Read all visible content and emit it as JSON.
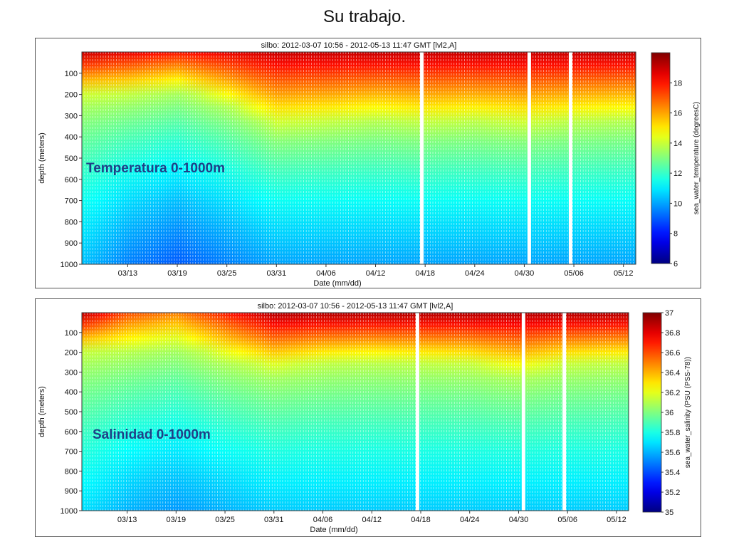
{
  "slide": {
    "title": "Su trabajo."
  },
  "chart_data": [
    {
      "type": "heatmap",
      "title": "silbo: 2012-03-07 10:56 - 2012-05-13 11:47 GMT [lvl2,A]",
      "overlay_label": "Temperatura 0-1000m",
      "xlabel": "Date (mm/dd)",
      "ylabel": "depth (meters)",
      "x_ticks": [
        "03/13",
        "03/19",
        "03/25",
        "03/31",
        "04/06",
        "04/12",
        "04/18",
        "04/24",
        "04/30",
        "05/06",
        "05/12"
      ],
      "y_ticks": [
        100,
        200,
        300,
        400,
        500,
        600,
        700,
        800,
        900,
        1000
      ],
      "ylim": [
        1000,
        0
      ],
      "colorbar": {
        "label": "sea_water_temperature (degreesC)",
        "range": [
          6,
          20
        ],
        "ticks": [
          6,
          8,
          10,
          12,
          14,
          16,
          18
        ]
      },
      "profiles": [
        {
          "date": "03/07",
          "surface": 19,
          "isotherm_depth": 200,
          "deep": 10.5
        },
        {
          "date": "03/13",
          "surface": 18.5,
          "isotherm_depth": 190,
          "deep": 9.5
        },
        {
          "date": "03/19",
          "surface": 18,
          "isotherm_depth": 160,
          "deep": 9
        },
        {
          "date": "03/25",
          "surface": 18.5,
          "isotherm_depth": 230,
          "deep": 9.5
        },
        {
          "date": "03/31",
          "surface": 19,
          "isotherm_depth": 330,
          "deep": 10
        },
        {
          "date": "04/06",
          "surface": 19,
          "isotherm_depth": 320,
          "deep": 10
        },
        {
          "date": "04/12",
          "surface": 19,
          "isotherm_depth": 300,
          "deep": 10
        },
        {
          "date": "04/18",
          "surface": 19,
          "isotherm_depth": 320,
          "deep": 10
        },
        {
          "date": "04/24",
          "surface": 19,
          "isotherm_depth": 310,
          "deep": 10
        },
        {
          "date": "04/30",
          "surface": 19,
          "isotherm_depth": 330,
          "deep": 10
        },
        {
          "date": "05/06",
          "surface": 19,
          "isotherm_depth": 310,
          "deep": 10
        },
        {
          "date": "05/12",
          "surface": 19,
          "isotherm_depth": 300,
          "deep": 10
        }
      ],
      "gaps": [
        "04/17",
        "04/30",
        "05/05"
      ]
    },
    {
      "type": "heatmap",
      "title": "silbo: 2012-03-07 10:56 - 2012-05-13 11:47 GMT [lvl2,A]",
      "overlay_label": "Salinidad 0-1000m",
      "xlabel": "Date (mm/dd)",
      "ylabel": "depth (meters)",
      "x_ticks": [
        "03/13",
        "03/19",
        "03/25",
        "03/31",
        "04/06",
        "04/12",
        "04/18",
        "04/24",
        "04/30",
        "05/06",
        "05/12"
      ],
      "y_ticks": [
        100,
        200,
        300,
        400,
        500,
        600,
        700,
        800,
        900,
        1000
      ],
      "ylim": [
        1000,
        0
      ],
      "colorbar": {
        "label": "sea_water_salinity (PSU (PSS-78))",
        "range": [
          35,
          37
        ],
        "ticks": [
          35,
          35.2,
          35.4,
          35.6,
          35.8,
          36,
          36.2,
          36.4,
          36.6,
          36.8,
          37
        ]
      },
      "profiles": [
        {
          "date": "03/07",
          "surface": 36.9,
          "isohaline_depth": 190,
          "deep": 35.7
        },
        {
          "date": "03/13",
          "surface": 36.6,
          "isohaline_depth": 170,
          "deep": 35.6
        },
        {
          "date": "03/19",
          "surface": 36.5,
          "isohaline_depth": 140,
          "deep": 35.55
        },
        {
          "date": "03/25",
          "surface": 36.7,
          "isohaline_depth": 220,
          "deep": 35.6
        },
        {
          "date": "03/31",
          "surface": 36.9,
          "isohaline_depth": 270,
          "deep": 35.65
        },
        {
          "date": "04/06",
          "surface": 36.9,
          "isohaline_depth": 240,
          "deep": 35.65
        },
        {
          "date": "04/12",
          "surface": 36.9,
          "isohaline_depth": 230,
          "deep": 35.65
        },
        {
          "date": "04/18",
          "surface": 36.9,
          "isohaline_depth": 240,
          "deep": 35.65
        },
        {
          "date": "04/24",
          "surface": 36.9,
          "isohaline_depth": 250,
          "deep": 35.65
        },
        {
          "date": "04/30",
          "surface": 36.9,
          "isohaline_depth": 290,
          "deep": 35.65
        },
        {
          "date": "05/06",
          "surface": 36.9,
          "isohaline_depth": 250,
          "deep": 35.65
        },
        {
          "date": "05/12",
          "surface": 36.9,
          "isohaline_depth": 240,
          "deep": 35.65
        }
      ],
      "gaps": [
        "04/17",
        "04/30",
        "05/05"
      ]
    }
  ]
}
